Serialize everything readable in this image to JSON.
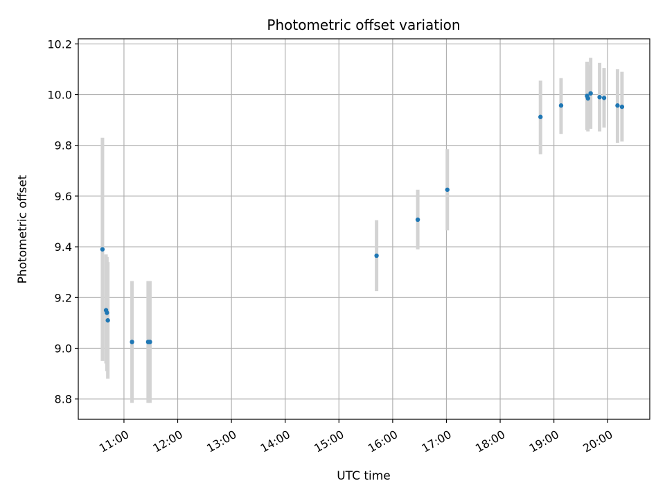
{
  "chart_data": {
    "type": "scatter",
    "title": "Photometric offset variation",
    "xlabel": "UTC time",
    "ylabel": "Photometric offset",
    "xlim": [
      "10:09",
      "20:47"
    ],
    "ylim": [
      8.72,
      10.22
    ],
    "grid": true,
    "x_ticks": [
      "11:00",
      "12:00",
      "13:00",
      "14:00",
      "15:00",
      "16:00",
      "17:00",
      "18:00",
      "19:00",
      "20:00"
    ],
    "y_ticks": [
      "8.8",
      "9.0",
      "9.2",
      "9.4",
      "9.6",
      "9.8",
      "10.0",
      "10.2"
    ],
    "series": [
      {
        "marker_color": "#1f77b4",
        "errorbar_color": "#d3d3d3",
        "points": [
          {
            "x": "10:36",
            "y": 9.39,
            "ylow": 8.95,
            "yhigh": 9.83
          },
          {
            "x": "10:40",
            "y": 9.15,
            "ylow": 8.94,
            "yhigh": 9.37
          },
          {
            "x": "10:41",
            "y": 9.14,
            "ylow": 8.91,
            "yhigh": 9.36
          },
          {
            "x": "10:42",
            "y": 9.11,
            "ylow": 8.88,
            "yhigh": 9.34
          },
          {
            "x": "11:09",
            "y": 9.025,
            "ylow": 8.785,
            "yhigh": 9.265
          },
          {
            "x": "11:27",
            "y": 9.025,
            "ylow": 8.785,
            "yhigh": 9.265
          },
          {
            "x": "11:29",
            "y": 9.025,
            "ylow": 8.785,
            "yhigh": 9.265
          },
          {
            "x": "15:42",
            "y": 9.365,
            "ylow": 9.225,
            "yhigh": 9.505
          },
          {
            "x": "16:28",
            "y": 9.507,
            "ylow": 9.39,
            "yhigh": 9.625
          },
          {
            "x": "17:01",
            "y": 9.625,
            "ylow": 9.465,
            "yhigh": 9.785
          },
          {
            "x": "18:45",
            "y": 9.912,
            "ylow": 9.765,
            "yhigh": 10.055
          },
          {
            "x": "19:08",
            "y": 9.957,
            "ylow": 9.845,
            "yhigh": 10.065
          },
          {
            "x": "19:37",
            "y": 9.995,
            "ylow": 9.86,
            "yhigh": 10.13
          },
          {
            "x": "19:38",
            "y": 9.985,
            "ylow": 9.855,
            "yhigh": 10.115
          },
          {
            "x": "19:41",
            "y": 10.005,
            "ylow": 9.865,
            "yhigh": 10.145
          },
          {
            "x": "19:51",
            "y": 9.99,
            "ylow": 9.855,
            "yhigh": 10.125
          },
          {
            "x": "19:56",
            "y": 9.987,
            "ylow": 9.87,
            "yhigh": 10.105
          },
          {
            "x": "20:11",
            "y": 9.957,
            "ylow": 9.81,
            "yhigh": 10.1
          },
          {
            "x": "20:16",
            "y": 9.952,
            "ylow": 9.815,
            "yhigh": 10.09
          }
        ]
      }
    ]
  }
}
